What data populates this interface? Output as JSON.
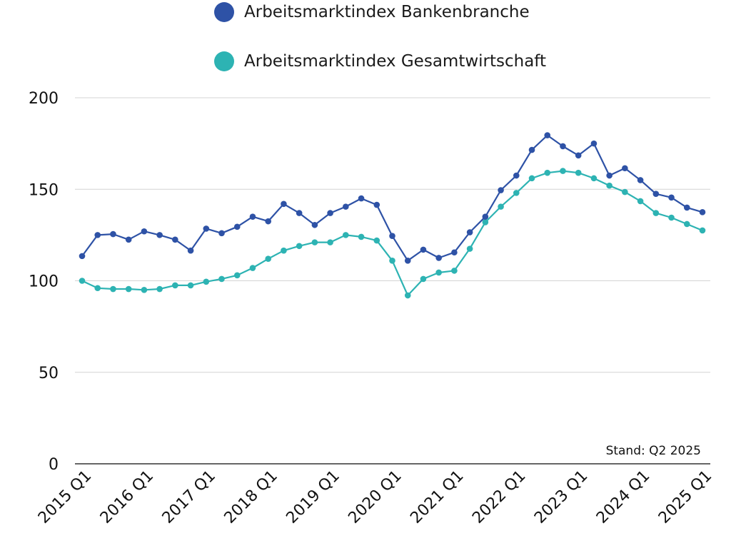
{
  "chart_data": {
    "type": "line",
    "title": "",
    "xlabel": "",
    "ylabel": "",
    "ylim": [
      0,
      200
    ],
    "yticks": [
      0,
      50,
      100,
      150,
      200
    ],
    "grid": true,
    "legend_position": "top",
    "note": "Stand: Q2 2025",
    "x_tick_labels": [
      "2015 Q1",
      "2016 Q1",
      "2017 Q1",
      "2018 Q1",
      "2019 Q1",
      "2020 Q1",
      "2021 Q1",
      "2022 Q1",
      "2023 Q1",
      "2024 Q1",
      "2025 Q1"
    ],
    "x": [
      "2015 Q1",
      "2015 Q2",
      "2015 Q3",
      "2015 Q4",
      "2016 Q1",
      "2016 Q2",
      "2016 Q3",
      "2016 Q4",
      "2017 Q1",
      "2017 Q2",
      "2017 Q3",
      "2017 Q4",
      "2018 Q1",
      "2018 Q2",
      "2018 Q3",
      "2018 Q4",
      "2019 Q1",
      "2019 Q2",
      "2019 Q3",
      "2019 Q4",
      "2020 Q1",
      "2020 Q2",
      "2020 Q3",
      "2020 Q4",
      "2021 Q1",
      "2021 Q2",
      "2021 Q3",
      "2021 Q4",
      "2022 Q1",
      "2022 Q2",
      "2022 Q3",
      "2022 Q4",
      "2023 Q1",
      "2023 Q2",
      "2023 Q3",
      "2023 Q4",
      "2024 Q1",
      "2024 Q2",
      "2024 Q3",
      "2024 Q4",
      "2025 Q1"
    ],
    "series": [
      {
        "name": "Arbeitsmarktindex Bankenbranche",
        "color": "#2e52a6",
        "values": [
          113.5,
          125,
          125.5,
          122.5,
          127,
          125,
          122.5,
          116.5,
          128.5,
          126,
          129.5,
          135,
          132.5,
          142,
          137,
          130.5,
          137,
          140.5,
          145,
          141.5,
          124.5,
          111,
          117,
          112.5,
          115.5,
          126.5,
          135,
          149.5,
          157.5,
          171.5,
          179.5,
          173.5,
          168.5,
          175,
          157.5,
          161.5,
          155,
          147.5,
          145.5,
          140,
          137.5
        ]
      },
      {
        "name": "Arbeitsmarktindex Gesamtwirtschaft",
        "color": "#2db3b3",
        "values": [
          100,
          96,
          95.5,
          95.5,
          95,
          95.5,
          97.5,
          97.5,
          99.5,
          101,
          103,
          107,
          112,
          116.5,
          119,
          121,
          121,
          125,
          124,
          122,
          111,
          92,
          101,
          104.5,
          105.5,
          117.5,
          132,
          140.5,
          148,
          156,
          159,
          160,
          159,
          156,
          152,
          148.5,
          143.5,
          137,
          134.5,
          131,
          127.5
        ]
      }
    ]
  }
}
